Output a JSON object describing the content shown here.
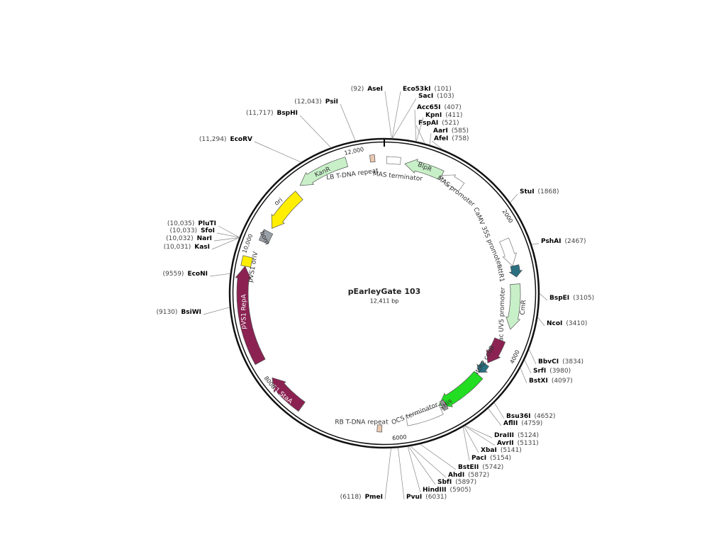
{
  "title": "pEarleyGate 103",
  "length": "12,411 bp",
  "scale": [
    "12,000",
    "2000",
    "4000",
    "6000",
    "8000",
    "10,000"
  ],
  "features": [
    {
      "label": "KanR"
    },
    {
      "label": "LB T-DNA repeat"
    },
    {
      "label": "MAS terminator"
    },
    {
      "label": "BlpR"
    },
    {
      "label": "MAS promoter"
    },
    {
      "label": "CaMV 35S promoter"
    },
    {
      "label": "attR1"
    },
    {
      "label": "lac UV5 promoter"
    },
    {
      "label": "CmR"
    },
    {
      "label": "ccdB"
    },
    {
      "label": "attR2"
    },
    {
      "label": "mgfp5"
    },
    {
      "label": "6xHis"
    },
    {
      "label": "OCS terminator"
    },
    {
      "label": "RB T-DNA repeat"
    },
    {
      "label": "pVS1 StaA"
    },
    {
      "label": "pVS1 RepA"
    },
    {
      "label": "pVS1 oriV"
    },
    {
      "label": "bom"
    },
    {
      "label": "ori"
    }
  ],
  "sites": [
    {
      "name": "AseI",
      "position": "(92)"
    },
    {
      "name": "Eco53kI",
      "position": "(101)"
    },
    {
      "name": "SacI",
      "position": "(103)"
    },
    {
      "name": "Acc65I",
      "position": "(407)"
    },
    {
      "name": "KpnI",
      "position": "(411)"
    },
    {
      "name": "FspAI",
      "position": "(521)"
    },
    {
      "name": "AarI",
      "position": "(585)"
    },
    {
      "name": "AfeI",
      "position": "(758)"
    },
    {
      "name": "StuI",
      "position": "(1868)"
    },
    {
      "name": "PshAI",
      "position": "(2467)"
    },
    {
      "name": "BspEI",
      "position": "(3105)"
    },
    {
      "name": "NcoI",
      "position": "(3410)"
    },
    {
      "name": "BbvCI",
      "position": "(3834)"
    },
    {
      "name": "SrfI",
      "position": "(3980)"
    },
    {
      "name": "BstXI",
      "position": "(4097)"
    },
    {
      "name": "Bsu36I",
      "position": "(4652)"
    },
    {
      "name": "AflII",
      "position": "(4759)"
    },
    {
      "name": "DraIII",
      "position": "(5124)"
    },
    {
      "name": "AvrII",
      "position": "(5131)"
    },
    {
      "name": "XbaI",
      "position": "(5141)"
    },
    {
      "name": "PacI",
      "position": "(5154)"
    },
    {
      "name": "BstEII",
      "position": "(5742)"
    },
    {
      "name": "AhdI",
      "position": "(5872)"
    },
    {
      "name": "SbfI",
      "position": "(5897)"
    },
    {
      "name": "HindIII",
      "position": "(5905)"
    },
    {
      "name": "PvuI",
      "position": "(6031)"
    },
    {
      "name": "PmeI",
      "position": "(6118)"
    },
    {
      "name": "BsiWI",
      "position": "(9130)"
    },
    {
      "name": "EcoNI",
      "position": "(9559)"
    },
    {
      "name": "KasI",
      "position": "(10,031)"
    },
    {
      "name": "NarI",
      "position": "(10,032)"
    },
    {
      "name": "SfoI",
      "position": "(10,033)"
    },
    {
      "name": "PluTI",
      "position": "(10,035)"
    },
    {
      "name": "EcoRV",
      "position": "(11,294)"
    },
    {
      "name": "BspHI",
      "position": "(11,717)"
    },
    {
      "name": "PsiI",
      "position": "(12,043)"
    }
  ]
}
